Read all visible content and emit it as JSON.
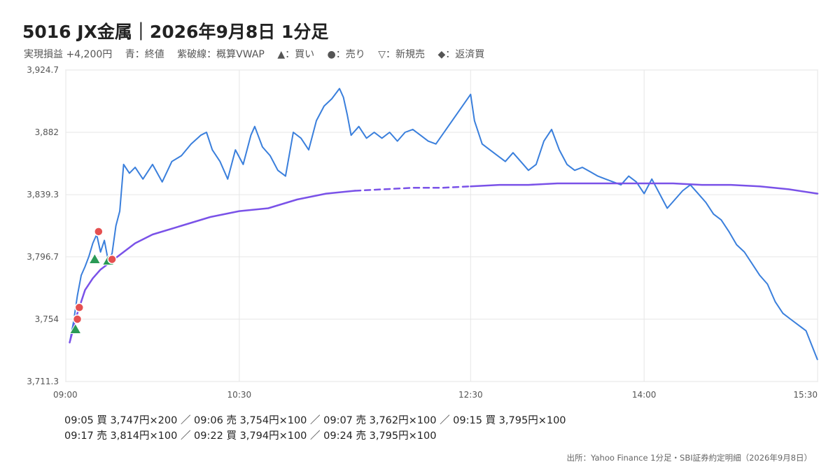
{
  "header": {
    "title": "5016 JX金属｜2026年9月8日 1分足",
    "legend": [
      "実現損益 +4,200円",
      "青：終値",
      "紫破線：概算VWAP",
      "▲：買い",
      "●：売り",
      "▽：新規売",
      "◆：返済買"
    ]
  },
  "chart_data": {
    "type": "line",
    "title": "5016 JX金属｜2026年9月8日 1分足",
    "x_ticks": [
      "09:00",
      "10:30",
      "12:30",
      "14:00",
      "15:30"
    ],
    "y_ticks": [
      "3,711.3",
      "3,754",
      "3,796.7",
      "3,839.3",
      "3,882",
      "3,924.7"
    ],
    "ylim": [
      3711.3,
      3924.7
    ],
    "grid": true,
    "series": [
      {
        "name": "終値",
        "color": "#3a7fdc",
        "points": [
          [
            "09:02",
            3738
          ],
          [
            "09:04",
            3752
          ],
          [
            "09:06",
            3770
          ],
          [
            "09:08",
            3784
          ],
          [
            "09:10",
            3790
          ],
          [
            "09:12",
            3797
          ],
          [
            "09:14",
            3806
          ],
          [
            "09:16",
            3812
          ],
          [
            "09:18",
            3800
          ],
          [
            "09:20",
            3808
          ],
          [
            "09:22",
            3794
          ],
          [
            "09:24",
            3799
          ],
          [
            "09:26",
            3818
          ],
          [
            "09:28",
            3828
          ],
          [
            "09:30",
            3860
          ],
          [
            "09:33",
            3854
          ],
          [
            "09:36",
            3858
          ],
          [
            "09:40",
            3850
          ],
          [
            "09:45",
            3860
          ],
          [
            "09:50",
            3848
          ],
          [
            "09:55",
            3862
          ],
          [
            "10:00",
            3866
          ],
          [
            "10:05",
            3874
          ],
          [
            "10:10",
            3880
          ],
          [
            "10:13",
            3882
          ],
          [
            "10:16",
            3870
          ],
          [
            "10:20",
            3862
          ],
          [
            "10:24",
            3850
          ],
          [
            "10:28",
            3870
          ],
          [
            "10:32",
            3860
          ],
          [
            "10:36",
            3880
          ],
          [
            "10:38",
            3886
          ],
          [
            "10:42",
            3872
          ],
          [
            "10:46",
            3866
          ],
          [
            "10:50",
            3856
          ],
          [
            "10:54",
            3852
          ],
          [
            "10:58",
            3882
          ],
          [
            "11:02",
            3878
          ],
          [
            "11:06",
            3870
          ],
          [
            "11:10",
            3890
          ],
          [
            "11:14",
            3900
          ],
          [
            "11:18",
            3905
          ],
          [
            "11:22",
            3912
          ],
          [
            "11:24",
            3906
          ],
          [
            "11:26",
            3894
          ],
          [
            "11:28",
            3880
          ],
          [
            "11:32",
            3886
          ],
          [
            "11:36",
            3878
          ],
          [
            "11:40",
            3882
          ],
          [
            "11:44",
            3878
          ],
          [
            "11:48",
            3882
          ],
          [
            "11:52",
            3876
          ],
          [
            "11:56",
            3882
          ],
          [
            "12:00",
            3884
          ],
          [
            "12:04",
            3880
          ],
          [
            "12:08",
            3876
          ],
          [
            "12:12",
            3874
          ],
          [
            "12:30",
            3908
          ],
          [
            "12:32",
            3890
          ],
          [
            "12:36",
            3874
          ],
          [
            "12:40",
            3870
          ],
          [
            "12:44",
            3866
          ],
          [
            "12:48",
            3862
          ],
          [
            "12:52",
            3868
          ],
          [
            "12:56",
            3862
          ],
          [
            "13:00",
            3856
          ],
          [
            "13:04",
            3860
          ],
          [
            "13:08",
            3876
          ],
          [
            "13:12",
            3884
          ],
          [
            "13:16",
            3870
          ],
          [
            "13:20",
            3860
          ],
          [
            "13:24",
            3856
          ],
          [
            "13:28",
            3858
          ],
          [
            "13:32",
            3855
          ],
          [
            "13:36",
            3852
          ],
          [
            "13:40",
            3850
          ],
          [
            "13:44",
            3848
          ],
          [
            "13:48",
            3846
          ],
          [
            "13:52",
            3852
          ],
          [
            "13:56",
            3848
          ],
          [
            "14:00",
            3840
          ],
          [
            "14:04",
            3850
          ],
          [
            "14:08",
            3840
          ],
          [
            "14:12",
            3830
          ],
          [
            "14:16",
            3836
          ],
          [
            "14:20",
            3842
          ],
          [
            "14:24",
            3846
          ],
          [
            "14:28",
            3840
          ],
          [
            "14:32",
            3834
          ],
          [
            "14:36",
            3826
          ],
          [
            "14:40",
            3822
          ],
          [
            "14:44",
            3814
          ],
          [
            "14:48",
            3805
          ],
          [
            "14:52",
            3800
          ],
          [
            "14:56",
            3792
          ],
          [
            "15:00",
            3784
          ],
          [
            "15:04",
            3778
          ],
          [
            "15:08",
            3766
          ],
          [
            "15:12",
            3758
          ],
          [
            "15:16",
            3754
          ],
          [
            "15:20",
            3750
          ],
          [
            "15:24",
            3746
          ],
          [
            "15:30",
            3726
          ]
        ]
      },
      {
        "name": "概算VWAP",
        "color": "#7a52e8",
        "points": [
          [
            "09:02",
            3738
          ],
          [
            "09:06",
            3758
          ],
          [
            "09:10",
            3774
          ],
          [
            "09:14",
            3782
          ],
          [
            "09:18",
            3788
          ],
          [
            "09:22",
            3792
          ],
          [
            "09:26",
            3796
          ],
          [
            "09:30",
            3800
          ],
          [
            "09:36",
            3806
          ],
          [
            "09:45",
            3812
          ],
          [
            "10:00",
            3818
          ],
          [
            "10:15",
            3824
          ],
          [
            "10:30",
            3828
          ],
          [
            "10:45",
            3830
          ],
          [
            "11:00",
            3836
          ],
          [
            "11:15",
            3840
          ],
          [
            "11:30",
            3842
          ],
          [
            "11:45",
            3843
          ],
          [
            "12:00",
            3844
          ],
          [
            "12:15",
            3844
          ],
          [
            "12:30",
            3845
          ],
          [
            "12:45",
            3846
          ],
          [
            "13:00",
            3846
          ],
          [
            "13:15",
            3847
          ],
          [
            "13:30",
            3847
          ],
          [
            "13:45",
            3847
          ],
          [
            "14:00",
            3847
          ],
          [
            "14:15",
            3847
          ],
          [
            "14:30",
            3846
          ],
          [
            "14:45",
            3846
          ],
          [
            "15:00",
            3845
          ],
          [
            "15:15",
            3843
          ],
          [
            "15:30",
            3840
          ]
        ]
      }
    ],
    "markers": [
      {
        "time": "09:05",
        "type": "buy",
        "price": 3747
      },
      {
        "time": "09:06",
        "type": "sell",
        "price": 3754
      },
      {
        "time": "09:07",
        "type": "sell",
        "price": 3762
      },
      {
        "time": "09:15",
        "type": "buy",
        "price": 3795
      },
      {
        "time": "09:17",
        "type": "sell",
        "price": 3814
      },
      {
        "time": "09:22",
        "type": "buy",
        "price": 3794
      },
      {
        "time": "09:24",
        "type": "sell",
        "price": 3795
      }
    ],
    "colors": {
      "buy": "#2a9a56",
      "sell": "#e55050",
      "grid": "#e6e6e6",
      "axis": "#cccccc"
    }
  },
  "trades": {
    "line1": "09:05 買 3,747円×200 ／ 09:06 売 3,754円×100 ／ 09:07 売 3,762円×100 ／ 09:15 買 3,795円×100",
    "line2": "09:17 売 3,814円×100 ／ 09:22 買 3,794円×100 ／ 09:24 売 3,795円×100"
  },
  "source": "出所：Yahoo Finance 1分足・SBI証券約定明細（2026年9月8日）"
}
